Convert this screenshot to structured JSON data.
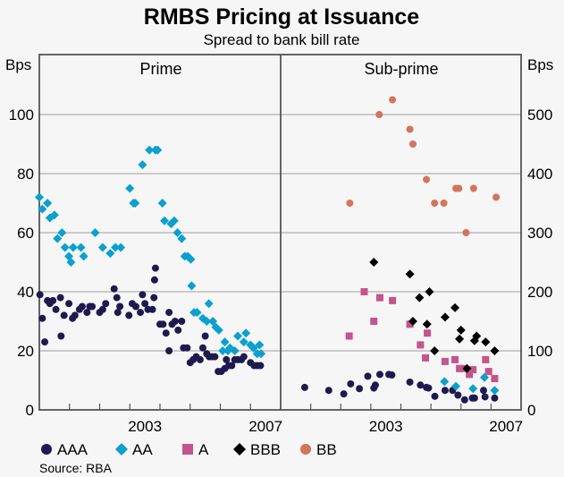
{
  "chart_data": [
    {
      "panel": "Prime",
      "type": "scatter",
      "title": "RMBS Pricing at Issuance",
      "subtitle": "Spread to bank bill rate",
      "ylabel": "Bps",
      "xlim": [
        2000,
        2008
      ],
      "ylim": [
        0,
        120
      ],
      "yticks": [
        0,
        20,
        40,
        60,
        80,
        100
      ],
      "xtick_labels": [
        {
          "label": "2003",
          "year": 2003
        },
        {
          "label": "2007",
          "year": 2007
        }
      ],
      "xticks_minor": [
        2001,
        2002,
        2003,
        2004,
        2005,
        2006,
        2007
      ],
      "grid": true,
      "series": [
        {
          "name": "AAA",
          "points": [
            [
              2000.02,
              39
            ],
            [
              2000.1,
              31
            ],
            [
              2000.18,
              23
            ],
            [
              2000.27,
              37
            ],
            [
              2000.35,
              36
            ],
            [
              2000.45,
              37
            ],
            [
              2000.55,
              34
            ],
            [
              2000.7,
              38
            ],
            [
              2000.72,
              25
            ],
            [
              2000.82,
              32
            ],
            [
              2000.98,
              36
            ],
            [
              2001.1,
              31
            ],
            [
              2001.18,
              32
            ],
            [
              2001.33,
              34
            ],
            [
              2001.42,
              35
            ],
            [
              2001.58,
              33
            ],
            [
              2001.67,
              35
            ],
            [
              2001.75,
              35
            ],
            [
              2002.0,
              33
            ],
            [
              2002.1,
              34
            ],
            [
              2002.2,
              36
            ],
            [
              2002.48,
              41
            ],
            [
              2002.57,
              38
            ],
            [
              2002.6,
              33
            ],
            [
              2002.67,
              35
            ],
            [
              2002.97,
              32
            ],
            [
              2003.08,
              36
            ],
            [
              2003.2,
              35
            ],
            [
              2003.35,
              33
            ],
            [
              2003.42,
              39
            ],
            [
              2003.5,
              36
            ],
            [
              2003.6,
              34
            ],
            [
              2003.75,
              34
            ],
            [
              2003.8,
              38
            ],
            [
              2003.82,
              44
            ],
            [
              2003.85,
              48
            ],
            [
              2004.0,
              29
            ],
            [
              2004.1,
              29
            ],
            [
              2004.2,
              26
            ],
            [
              2004.3,
              33
            ],
            [
              2004.3,
              20
            ],
            [
              2004.4,
              29
            ],
            [
              2004.5,
              30
            ],
            [
              2004.6,
              27
            ],
            [
              2004.72,
              30
            ],
            [
              2004.78,
              21
            ],
            [
              2004.9,
              21
            ],
            [
              2005.0,
              16
            ],
            [
              2005.1,
              17
            ],
            [
              2005.2,
              18
            ],
            [
              2005.33,
              17
            ],
            [
              2005.42,
              21
            ],
            [
              2005.5,
              25
            ],
            [
              2005.55,
              19
            ],
            [
              2005.63,
              18
            ],
            [
              2005.72,
              18
            ],
            [
              2005.82,
              18
            ],
            [
              2005.93,
              13
            ],
            [
              2006.03,
              13
            ],
            [
              2006.15,
              14
            ],
            [
              2006.2,
              17
            ],
            [
              2006.28,
              15
            ],
            [
              2006.38,
              15
            ],
            [
              2006.48,
              17
            ],
            [
              2006.58,
              17
            ],
            [
              2006.7,
              17
            ],
            [
              2006.78,
              18
            ],
            [
              2007.0,
              16
            ],
            [
              2007.12,
              15
            ],
            [
              2007.22,
              15
            ],
            [
              2007.33,
              15
            ]
          ]
        },
        {
          "name": "AA",
          "points": [
            [
              2000.0,
              72
            ],
            [
              2000.1,
              68
            ],
            [
              2000.27,
              70
            ],
            [
              2000.35,
              65
            ],
            [
              2000.5,
              66
            ],
            [
              2000.6,
              58
            ],
            [
              2000.75,
              60
            ],
            [
              2000.85,
              55
            ],
            [
              2000.98,
              52
            ],
            [
              2001.05,
              50
            ],
            [
              2001.12,
              55
            ],
            [
              2001.38,
              55
            ],
            [
              2001.47,
              52
            ],
            [
              2001.85,
              60
            ],
            [
              2002.1,
              55
            ],
            [
              2002.35,
              53
            ],
            [
              2002.52,
              55
            ],
            [
              2002.7,
              55
            ],
            [
              2003.0,
              75
            ],
            [
              2003.12,
              70
            ],
            [
              2003.18,
              70
            ],
            [
              2003.42,
              83
            ],
            [
              2003.65,
              88
            ],
            [
              2003.85,
              88
            ],
            [
              2003.92,
              88
            ],
            [
              2004.08,
              70
            ],
            [
              2004.15,
              64
            ],
            [
              2004.37,
              63
            ],
            [
              2004.47,
              64
            ],
            [
              2004.58,
              60
            ],
            [
              2004.72,
              58
            ],
            [
              2004.82,
              52
            ],
            [
              2004.92,
              52
            ],
            [
              2005.02,
              51
            ],
            [
              2005.05,
              42
            ],
            [
              2005.13,
              33
            ],
            [
              2005.23,
              33
            ],
            [
              2005.42,
              31
            ],
            [
              2005.55,
              30
            ],
            [
              2005.62,
              36
            ],
            [
              2005.75,
              30
            ],
            [
              2005.85,
              28
            ],
            [
              2005.95,
              27
            ],
            [
              2006.08,
              20
            ],
            [
              2006.15,
              23
            ],
            [
              2006.25,
              20
            ],
            [
              2006.32,
              21
            ],
            [
              2006.48,
              20
            ],
            [
              2006.58,
              25
            ],
            [
              2006.78,
              23
            ],
            [
              2006.85,
              26
            ],
            [
              2007.0,
              22
            ],
            [
              2007.1,
              21
            ],
            [
              2007.22,
              19
            ],
            [
              2007.3,
              22
            ],
            [
              2007.35,
              19
            ]
          ]
        }
      ]
    },
    {
      "panel": "Sub-prime",
      "type": "scatter",
      "ylabel": "Bps",
      "xlim": [
        2000,
        2008
      ],
      "ylim": [
        0,
        600
      ],
      "yticks": [
        0,
        100,
        200,
        300,
        400,
        500
      ],
      "xtick_labels": [
        {
          "label": "2003",
          "year": 2003
        },
        {
          "label": "2007",
          "year": 2007
        }
      ],
      "xticks_minor": [
        2001,
        2002,
        2003,
        2004,
        2005,
        2006,
        2007
      ],
      "grid": true,
      "series": [
        {
          "name": "AAA",
          "points": [
            [
              2000.8,
              38
            ],
            [
              2001.6,
              33
            ],
            [
              2002.1,
              27
            ],
            [
              2002.33,
              44
            ],
            [
              2002.62,
              36
            ],
            [
              2002.9,
              57
            ],
            [
              2003.1,
              37
            ],
            [
              2003.15,
              42
            ],
            [
              2003.3,
              60
            ],
            [
              2003.6,
              60
            ],
            [
              2003.7,
              59
            ],
            [
              2004.3,
              47
            ],
            [
              2004.65,
              42
            ],
            [
              2004.85,
              38
            ],
            [
              2004.92,
              37
            ],
            [
              2005.13,
              23
            ],
            [
              2005.47,
              33
            ],
            [
              2005.72,
              33
            ],
            [
              2005.9,
              25
            ],
            [
              2006.12,
              17
            ],
            [
              2006.38,
              20
            ],
            [
              2006.45,
              20
            ],
            [
              2006.75,
              33
            ],
            [
              2006.8,
              22
            ],
            [
              2007.12,
              20
            ]
          ]
        },
        {
          "name": "AA",
          "points": [
            [
              2005.45,
              48
            ],
            [
              2005.83,
              40
            ],
            [
              2006.4,
              36
            ],
            [
              2006.78,
              55
            ],
            [
              2007.12,
              33
            ]
          ]
        },
        {
          "name": "A",
          "points": [
            [
              2002.28,
              125
            ],
            [
              2002.78,
              200
            ],
            [
              2003.1,
              150
            ],
            [
              2003.3,
              190
            ],
            [
              2003.72,
              185
            ],
            [
              2004.3,
              145
            ],
            [
              2004.65,
              110
            ],
            [
              2004.88,
              130
            ],
            [
              2004.82,
              88
            ],
            [
              2005.47,
              82
            ],
            [
              2005.8,
              85
            ],
            [
              2005.95,
              70
            ],
            [
              2006.05,
              70
            ],
            [
              2006.28,
              60
            ],
            [
              2006.4,
              68
            ],
            [
              2006.82,
              85
            ],
            [
              2006.92,
              65
            ],
            [
              2007.12,
              53
            ]
          ]
        },
        {
          "name": "BBB",
          "points": [
            [
              2003.1,
              250
            ],
            [
              2004.3,
              230
            ],
            [
              2004.4,
              150
            ],
            [
              2004.62,
              190
            ],
            [
              2004.87,
              145
            ],
            [
              2004.95,
              200
            ],
            [
              2005.12,
              100
            ],
            [
              2005.47,
              157
            ],
            [
              2005.8,
              173
            ],
            [
              2005.95,
              120
            ],
            [
              2006.0,
              135
            ],
            [
              2006.2,
              70
            ],
            [
              2006.45,
              117
            ],
            [
              2006.52,
              125
            ],
            [
              2006.82,
              115
            ],
            [
              2007.12,
              100
            ]
          ]
        },
        {
          "name": "BB",
          "points": [
            [
              2002.3,
              350
            ],
            [
              2003.28,
              500
            ],
            [
              2003.72,
              525
            ],
            [
              2004.3,
              475
            ],
            [
              2004.4,
              450
            ],
            [
              2004.85,
              390
            ],
            [
              2005.12,
              350
            ],
            [
              2005.43,
              350
            ],
            [
              2005.83,
              375
            ],
            [
              2005.93,
              375
            ],
            [
              2006.17,
              300
            ],
            [
              2006.42,
              375
            ],
            [
              2007.17,
              360
            ]
          ]
        }
      ]
    }
  ],
  "header": {
    "title": "RMBS Pricing at Issuance",
    "subtitle": "Spread to bank bill rate"
  },
  "axes": {
    "left_unit": "Bps",
    "right_unit": "Bps",
    "left_ticks": [
      "0",
      "20",
      "40",
      "60",
      "80",
      "100"
    ],
    "right_ticks": [
      "0",
      "100",
      "200",
      "300",
      "400",
      "500"
    ],
    "prime_year_labels": [
      "2003",
      "2007"
    ],
    "subprime_year_labels": [
      "2003",
      "2007"
    ]
  },
  "panels": {
    "left": "Prime",
    "right": "Sub-prime"
  },
  "legend": [
    {
      "name": "AAA",
      "marker": "circle",
      "color": "#1e1a4f"
    },
    {
      "name": "AA",
      "marker": "diamond",
      "color": "#0aa0d0"
    },
    {
      "name": "A",
      "marker": "square",
      "color": "#c4548c"
    },
    {
      "name": "BBB",
      "marker": "diamond",
      "color": "#000000"
    },
    {
      "name": "BB",
      "marker": "circle",
      "color": "#d4745c"
    }
  ],
  "source": "Source: RBA"
}
